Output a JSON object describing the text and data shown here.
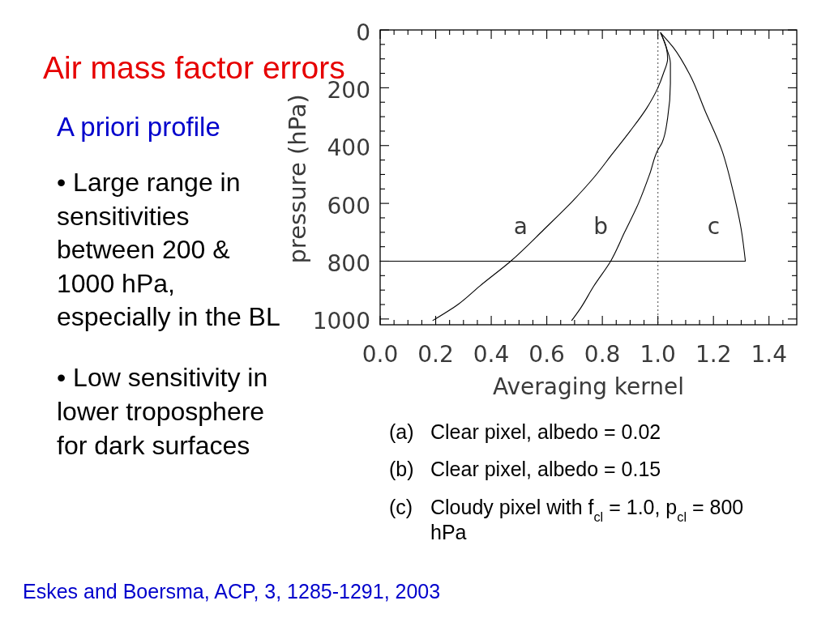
{
  "chart_data": {
    "type": "line",
    "title": "Air mass factor errors",
    "subtitle": "A priori profile",
    "xlabel": "Averaging kernel",
    "ylabel": "pressure (hPa)",
    "xlim": [
      0,
      1.5
    ],
    "ylim": [
      1020,
      0
    ],
    "xticks": [
      {
        "value": 0,
        "label": "0.0"
      },
      {
        "value": 0.05,
        "label": null
      },
      {
        "value": 0.1,
        "label": null
      },
      {
        "value": 0.15,
        "label": null
      },
      {
        "value": 0.2,
        "label": "0.2"
      },
      {
        "value": 0.25,
        "label": null
      },
      {
        "value": 0.3,
        "label": null
      },
      {
        "value": 0.35,
        "label": null
      },
      {
        "value": 0.4,
        "label": "0.4"
      },
      {
        "value": 0.45,
        "label": null
      },
      {
        "value": 0.5,
        "label": null
      },
      {
        "value": 0.55,
        "label": null
      },
      {
        "value": 0.6,
        "label": "0.6"
      },
      {
        "value": 0.65,
        "label": null
      },
      {
        "value": 0.7,
        "label": null
      },
      {
        "value": 0.75,
        "label": null
      },
      {
        "value": 0.8,
        "label": "0.8"
      },
      {
        "value": 0.85,
        "label": null
      },
      {
        "value": 0.9,
        "label": null
      },
      {
        "value": 0.95,
        "label": null
      },
      {
        "value": 1.0,
        "label": "1.0"
      },
      {
        "value": 1.05,
        "label": null
      },
      {
        "value": 1.1,
        "label": null
      },
      {
        "value": 1.15,
        "label": null
      },
      {
        "value": 1.2,
        "label": "1.2"
      },
      {
        "value": 1.25,
        "label": null
      },
      {
        "value": 1.3,
        "label": null
      },
      {
        "value": 1.35,
        "label": null
      },
      {
        "value": 1.4,
        "label": "1.4"
      },
      {
        "value": 1.45,
        "label": null
      }
    ],
    "yticks": [
      0,
      {
        "value": 50,
        "label": null
      },
      {
        "value": 100,
        "label": null
      },
      {
        "value": 150,
        "label": null
      },
      200,
      {
        "value": 250,
        "label": null
      },
      {
        "value": 300,
        "label": null
      },
      {
        "value": 350,
        "label": null
      },
      400,
      {
        "value": 450,
        "label": null
      },
      {
        "value": 500,
        "label": null
      },
      {
        "value": 550,
        "label": null
      },
      600,
      {
        "value": 650,
        "label": null
      },
      {
        "value": 700,
        "label": null
      },
      {
        "value": 750,
        "label": null
      },
      800,
      {
        "value": 850,
        "label": null
      },
      {
        "value": 900,
        "label": null
      },
      {
        "value": 950,
        "label": null
      },
      1000
    ],
    "series": [
      {
        "name": "a",
        "color": "#000000",
        "x": [
          1.01,
          1.03,
          1.035,
          1.02,
          1.0,
          0.96,
          0.9,
          0.835,
          0.77,
          0.695,
          0.59,
          0.47,
          0.36,
          0.28,
          0.19
        ],
        "values": [
          10,
          60,
          100,
          150,
          200,
          270,
          350,
          430,
          510,
          590,
          690,
          800,
          885,
          950,
          1005
        ]
      },
      {
        "name": "b",
        "color": "#000000",
        "x": [
          1.01,
          1.03,
          1.045,
          1.045,
          1.035,
          1.015,
          1.0,
          0.97,
          0.93,
          0.88,
          0.83,
          0.77,
          0.72,
          0.69
        ],
        "values": [
          10,
          60,
          115,
          185,
          305,
          390,
          415,
          500,
          600,
          700,
          800,
          885,
          965,
          1005
        ]
      },
      {
        "name": "c",
        "color": "#000000",
        "x": [
          1.01,
          1.055,
          1.115,
          1.17,
          1.23,
          1.27,
          1.3,
          1.315,
          0
        ],
        "values": [
          10,
          60,
          155,
          280,
          415,
          555,
          690,
          800,
          800
        ]
      }
    ],
    "ref_lines": [
      {
        "axis": "x",
        "value": 1.0,
        "line_style": "dotted",
        "color": "#666666"
      }
    ],
    "annotations": [
      "• Large range in sensitivities between 200 & 1000 hPa, especially in the BL",
      "• Low sensitivity in lower troposphere for dark surfaces",
      "(a) Clear pixel, albedo = 0.02",
      "(b) Clear pixel, albedo = 0.15",
      "(c) Cloudy pixel with f$_{cl}$ = 1.0, p$_{cl}$ = 800 hPa",
      "Eskes and Boersma, ACP, 3, 1285-1291, 2003"
    ]
  }
}
